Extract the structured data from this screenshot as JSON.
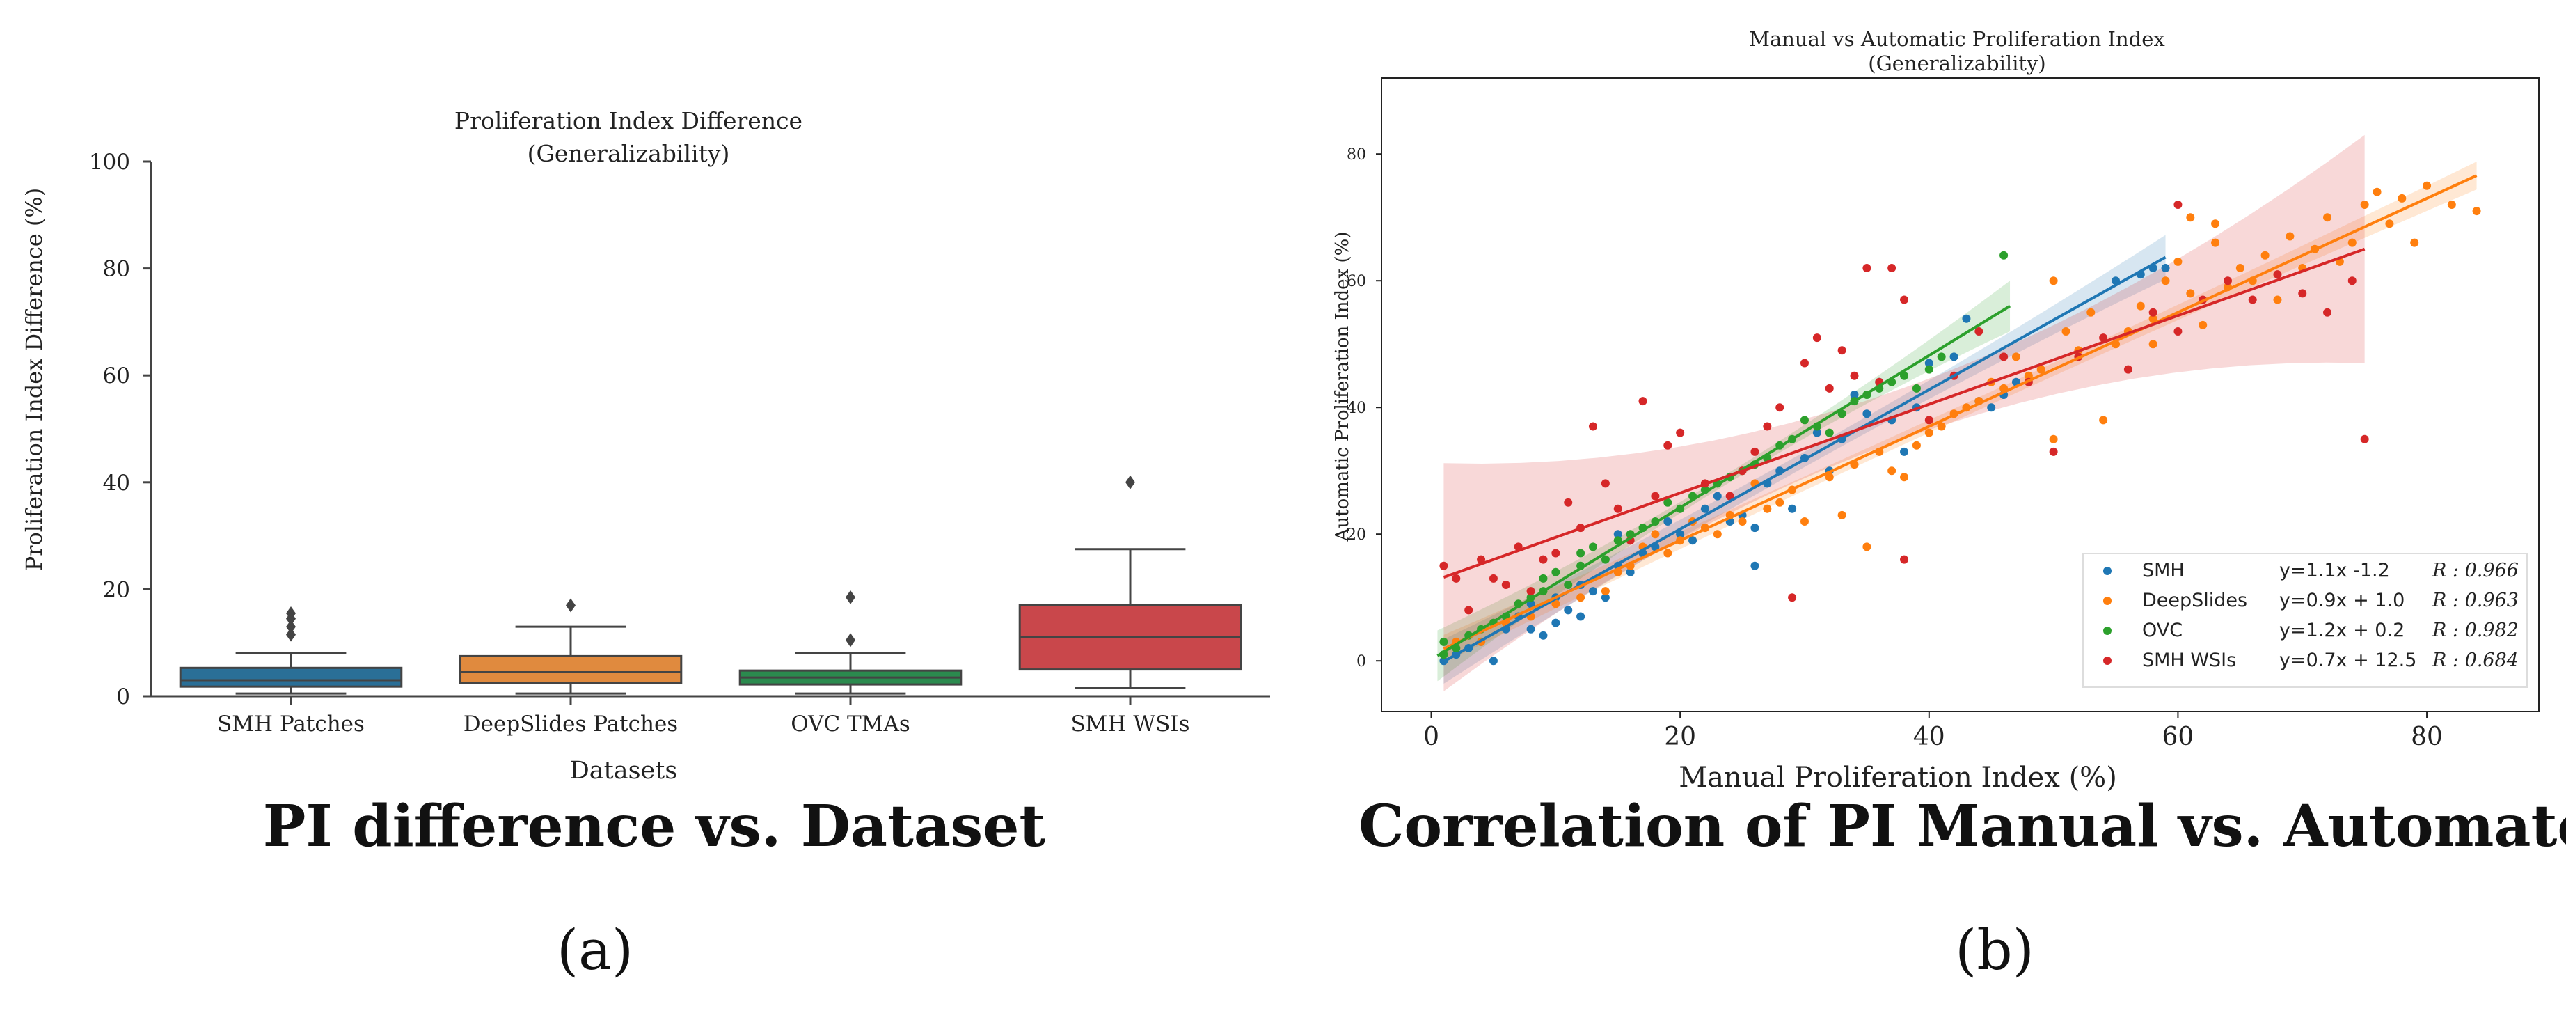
{
  "figure": {
    "panel_a_caption": "PI difference vs. Dataset",
    "panel_b_caption": "Correlation of PI Manual vs. Automated",
    "panel_a_label": "(a)",
    "panel_b_label": "(b)"
  },
  "colors": {
    "blue": "#1f77b4",
    "orange": "#ff7f0e",
    "green": "#2ca02c",
    "red": "#d62728",
    "box_blue": "#2a6f97",
    "box_orange": "#e08a3e",
    "box_green": "#2b8a4e",
    "box_red": "#c9474b"
  },
  "chart_data": [
    {
      "type": "box",
      "title": "Proliferation Index Difference",
      "subtitle": "(Generalizability)",
      "xlabel": "Datasets",
      "ylabel": "Proliferation Index Difference (%)",
      "ylim": [
        0,
        100
      ],
      "yticks": [
        0,
        20,
        40,
        60,
        80,
        100
      ],
      "categories": [
        "SMH Patches",
        "DeepSlides Patches",
        "OVC TMAs",
        "SMH WSIs"
      ],
      "boxes": [
        {
          "name": "SMH Patches",
          "whisker_low": 0.5,
          "q1": 1.8,
          "median": 3.0,
          "q3": 5.3,
          "whisker_high": 8.0,
          "outliers": [
            11.5,
            13.0,
            14.5,
            15.5
          ],
          "color": "#2a6f97"
        },
        {
          "name": "DeepSlides Patches",
          "whisker_low": 0.5,
          "q1": 2.5,
          "median": 4.5,
          "q3": 7.5,
          "whisker_high": 13.0,
          "outliers": [
            17.0
          ],
          "color": "#e08a3e"
        },
        {
          "name": "OVC TMAs",
          "whisker_low": 0.5,
          "q1": 2.2,
          "median": 3.5,
          "q3": 4.8,
          "whisker_high": 8.0,
          "outliers": [
            10.5,
            18.5
          ],
          "color": "#2b8a4e"
        },
        {
          "name": "SMH WSIs",
          "whisker_low": 1.5,
          "q1": 5.0,
          "median": 11.0,
          "q3": 17.0,
          "whisker_high": 27.5,
          "outliers": [
            40.0
          ],
          "color": "#c9474b"
        }
      ]
    },
    {
      "type": "scatter",
      "title": "Manual vs Automatic Proliferation Index",
      "subtitle": "(Generalizability)",
      "xlabel": "Manual Proliferation Index (%)",
      "ylabel": "Automatic Proliferation Index (%)",
      "xlim": [
        -4,
        89
      ],
      "ylim": [
        -8,
        92
      ],
      "xticks": [
        0,
        20,
        40,
        60,
        80
      ],
      "yticks": [
        0,
        20,
        40,
        60,
        80
      ],
      "legend_position": "bottom-right",
      "series": [
        {
          "name": "SMH",
          "equation": "y=1.1x  -1.2",
          "r_label": "R : 0.966",
          "color": "#1f77b4",
          "fit": {
            "slope": 1.1,
            "intercept": -1.2,
            "x_range": [
              1,
              59
            ]
          },
          "points": [
            [
              1,
              0
            ],
            [
              2,
              1
            ],
            [
              3,
              2
            ],
            [
              4,
              3
            ],
            [
              5,
              0
            ],
            [
              6,
              5
            ],
            [
              7,
              7
            ],
            [
              8,
              5
            ],
            [
              8,
              9
            ],
            [
              9,
              4
            ],
            [
              10,
              6
            ],
            [
              10,
              10
            ],
            [
              11,
              8
            ],
            [
              12,
              12
            ],
            [
              12,
              7
            ],
            [
              13,
              11
            ],
            [
              14,
              10
            ],
            [
              15,
              15
            ],
            [
              15,
              20
            ],
            [
              16,
              14
            ],
            [
              17,
              17
            ],
            [
              18,
              18
            ],
            [
              19,
              22
            ],
            [
              20,
              20
            ],
            [
              21,
              19
            ],
            [
              22,
              24
            ],
            [
              23,
              26
            ],
            [
              24,
              22
            ],
            [
              25,
              23
            ],
            [
              26,
              15
            ],
            [
              26,
              21
            ],
            [
              27,
              28
            ],
            [
              28,
              30
            ],
            [
              29,
              24
            ],
            [
              30,
              32
            ],
            [
              31,
              36
            ],
            [
              32,
              30
            ],
            [
              33,
              35
            ],
            [
              34,
              42
            ],
            [
              35,
              39
            ],
            [
              36,
              44
            ],
            [
              37,
              38
            ],
            [
              38,
              33
            ],
            [
              39,
              40
            ],
            [
              40,
              47
            ],
            [
              42,
              48
            ],
            [
              43,
              54
            ],
            [
              44,
              41
            ],
            [
              45,
              40
            ],
            [
              46,
              42
            ],
            [
              47,
              44
            ],
            [
              55,
              60
            ],
            [
              57,
              61
            ],
            [
              58,
              62
            ],
            [
              59,
              62
            ]
          ]
        },
        {
          "name": "DeepSlides",
          "equation": "y=0.9x + 1.0",
          "r_label": "R : 0.963",
          "color": "#ff7f0e",
          "fit": {
            "slope": 0.9,
            "intercept": 1.0,
            "x_range": [
              1,
              84
            ]
          },
          "points": [
            [
              2,
              3
            ],
            [
              4,
              3
            ],
            [
              6,
              6
            ],
            [
              8,
              7
            ],
            [
              10,
              9
            ],
            [
              12,
              10
            ],
            [
              14,
              11
            ],
            [
              15,
              14
            ],
            [
              16,
              15
            ],
            [
              17,
              18
            ],
            [
              18,
              20
            ],
            [
              19,
              17
            ],
            [
              20,
              19
            ],
            [
              21,
              22
            ],
            [
              22,
              21
            ],
            [
              23,
              20
            ],
            [
              24,
              23
            ],
            [
              25,
              22
            ],
            [
              26,
              28
            ],
            [
              27,
              24
            ],
            [
              28,
              25
            ],
            [
              29,
              27
            ],
            [
              30,
              22
            ],
            [
              32,
              29
            ],
            [
              33,
              23
            ],
            [
              34,
              31
            ],
            [
              35,
              18
            ],
            [
              36,
              33
            ],
            [
              37,
              30
            ],
            [
              38,
              29
            ],
            [
              39,
              34
            ],
            [
              40,
              36
            ],
            [
              41,
              37
            ],
            [
              42,
              39
            ],
            [
              43,
              40
            ],
            [
              44,
              41
            ],
            [
              45,
              44
            ],
            [
              46,
              43
            ],
            [
              47,
              48
            ],
            [
              48,
              45
            ],
            [
              49,
              46
            ],
            [
              50,
              35
            ],
            [
              51,
              52
            ],
            [
              52,
              49
            ],
            [
              53,
              55
            ],
            [
              54,
              38
            ],
            [
              55,
              50
            ],
            [
              56,
              52
            ],
            [
              57,
              56
            ],
            [
              58,
              54
            ],
            [
              59,
              60
            ],
            [
              60,
              63
            ],
            [
              61,
              58
            ],
            [
              62,
              53
            ],
            [
              63,
              66
            ],
            [
              64,
              59
            ],
            [
              65,
              62
            ],
            [
              66,
              60
            ],
            [
              67,
              64
            ],
            [
              68,
              57
            ],
            [
              69,
              67
            ],
            [
              70,
              62
            ],
            [
              71,
              65
            ],
            [
              72,
              70
            ],
            [
              73,
              63
            ],
            [
              74,
              66
            ],
            [
              75,
              72
            ],
            [
              76,
              74
            ],
            [
              77,
              69
            ],
            [
              78,
              73
            ],
            [
              79,
              66
            ],
            [
              80,
              75
            ],
            [
              82,
              72
            ],
            [
              84,
              71
            ],
            [
              50,
              60
            ],
            [
              58,
              50
            ],
            [
              61,
              70
            ],
            [
              63,
              69
            ]
          ]
        },
        {
          "name": "OVC",
          "equation": "y=1.2x + 0.2",
          "r_label": "R : 0.982",
          "color": "#2ca02c",
          "fit": {
            "slope": 1.2,
            "intercept": 0.2,
            "x_range": [
              0.5,
              46.5
            ]
          },
          "points": [
            [
              1,
              1
            ],
            [
              1,
              3
            ],
            [
              2,
              2
            ],
            [
              3,
              4
            ],
            [
              4,
              5
            ],
            [
              5,
              6
            ],
            [
              6,
              7
            ],
            [
              7,
              9
            ],
            [
              8,
              10
            ],
            [
              9,
              11
            ],
            [
              9,
              13
            ],
            [
              10,
              14
            ],
            [
              11,
              12
            ],
            [
              12,
              15
            ],
            [
              12,
              17
            ],
            [
              13,
              18
            ],
            [
              14,
              16
            ],
            [
              15,
              19
            ],
            [
              16,
              20
            ],
            [
              17,
              21
            ],
            [
              18,
              22
            ],
            [
              19,
              25
            ],
            [
              20,
              24
            ],
            [
              21,
              26
            ],
            [
              22,
              27
            ],
            [
              23,
              28
            ],
            [
              24,
              29
            ],
            [
              25,
              30
            ],
            [
              26,
              31
            ],
            [
              27,
              32
            ],
            [
              28,
              34
            ],
            [
              29,
              35
            ],
            [
              30,
              38
            ],
            [
              31,
              37
            ],
            [
              32,
              36
            ],
            [
              33,
              39
            ],
            [
              34,
              41
            ],
            [
              35,
              42
            ],
            [
              36,
              43
            ],
            [
              37,
              44
            ],
            [
              38,
              45
            ],
            [
              39,
              43
            ],
            [
              40,
              46
            ],
            [
              41,
              48
            ],
            [
              46,
              64
            ]
          ]
        },
        {
          "name": "SMH WSIs",
          "equation": "y=0.7x + 12.5",
          "r_label": "R : 0.684",
          "color": "#d62728",
          "fit": {
            "slope": 0.7,
            "intercept": 12.5,
            "x_range": [
              1,
              75
            ]
          },
          "points": [
            [
              1,
              15
            ],
            [
              2,
              13
            ],
            [
              3,
              8
            ],
            [
              4,
              16
            ],
            [
              5,
              13
            ],
            [
              6,
              12
            ],
            [
              7,
              18
            ],
            [
              8,
              11
            ],
            [
              9,
              16
            ],
            [
              10,
              17
            ],
            [
              11,
              25
            ],
            [
              12,
              21
            ],
            [
              13,
              37
            ],
            [
              14,
              28
            ],
            [
              15,
              24
            ],
            [
              16,
              19
            ],
            [
              17,
              41
            ],
            [
              18,
              26
            ],
            [
              19,
              34
            ],
            [
              20,
              36
            ],
            [
              22,
              28
            ],
            [
              24,
              26
            ],
            [
              25,
              30
            ],
            [
              26,
              33
            ],
            [
              27,
              37
            ],
            [
              28,
              40
            ],
            [
              29,
              10
            ],
            [
              30,
              47
            ],
            [
              31,
              51
            ],
            [
              32,
              43
            ],
            [
              33,
              49
            ],
            [
              34,
              45
            ],
            [
              35,
              62
            ],
            [
              36,
              44
            ],
            [
              37,
              62
            ],
            [
              38,
              16
            ],
            [
              38,
              57
            ],
            [
              40,
              38
            ],
            [
              42,
              45
            ],
            [
              44,
              52
            ],
            [
              46,
              48
            ],
            [
              48,
              44
            ],
            [
              50,
              33
            ],
            [
              52,
              48
            ],
            [
              54,
              51
            ],
            [
              56,
              46
            ],
            [
              58,
              55
            ],
            [
              60,
              52
            ],
            [
              60,
              72
            ],
            [
              62,
              57
            ],
            [
              64,
              60
            ],
            [
              66,
              57
            ],
            [
              68,
              61
            ],
            [
              70,
              58
            ],
            [
              72,
              55
            ],
            [
              74,
              60
            ],
            [
              75,
              35
            ]
          ]
        }
      ]
    }
  ]
}
